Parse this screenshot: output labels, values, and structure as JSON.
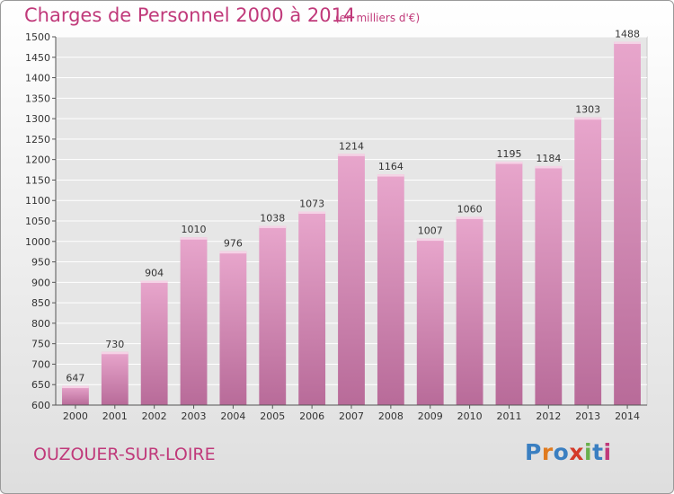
{
  "header": {
    "title": "Charges de Personnel 2000 à 2014",
    "subtitle": "(en milliers d'€)"
  },
  "footer": {
    "city": "OUZOUER-SUR-LOIRE",
    "logo_text": "Proxiti",
    "logo_colors": [
      "#3a7fc1",
      "#e07b1f",
      "#3a7fc1",
      "#d43a2a",
      "#6ab04c",
      "#3a7fc1",
      "#c0397a"
    ]
  },
  "colors": {
    "accent": "#c0397a",
    "bar_top": "#e8a6cc",
    "bar_bottom": "#b86b99",
    "bar_edge": "#f5d3e6",
    "plot_bg": "#e6e6e6"
  },
  "chart_data": {
    "type": "bar",
    "title": "Charges de Personnel 2000 à 2014",
    "subtitle": "(en milliers d'€)",
    "categories": [
      "2000",
      "2001",
      "2002",
      "2003",
      "2004",
      "2005",
      "2006",
      "2007",
      "2008",
      "2009",
      "2010",
      "2011",
      "2012",
      "2013",
      "2014"
    ],
    "values": [
      647,
      730,
      904,
      1010,
      976,
      1038,
      1073,
      1214,
      1164,
      1007,
      1060,
      1195,
      1184,
      1303,
      1488
    ],
    "xlabel": "",
    "ylabel": "",
    "ylim": [
      600,
      1500
    ],
    "yticks": [
      600,
      650,
      700,
      750,
      800,
      850,
      900,
      950,
      1000,
      1050,
      1100,
      1150,
      1200,
      1250,
      1300,
      1350,
      1400,
      1450,
      1500
    ],
    "grid": true,
    "legend": "none"
  }
}
